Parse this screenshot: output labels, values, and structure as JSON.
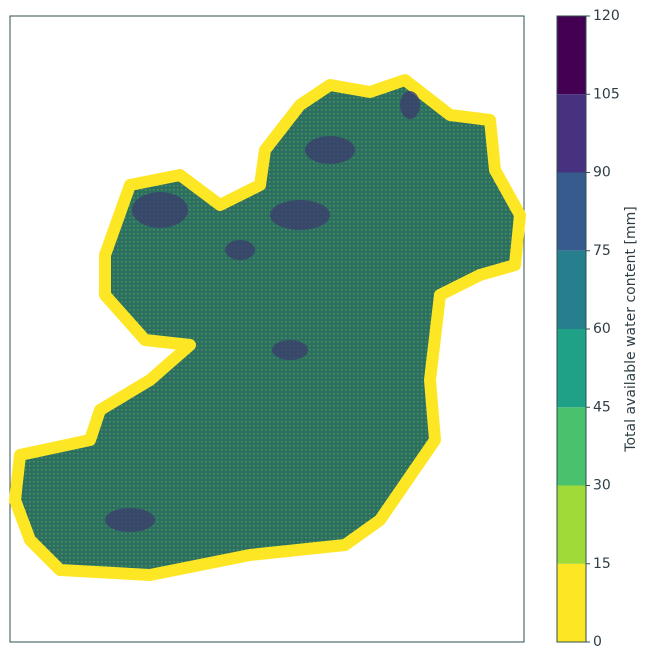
{
  "colorbar": {
    "label": "Total available water content [mm]",
    "ticks": [
      0,
      15,
      30,
      45,
      60,
      75,
      90,
      105,
      120
    ],
    "colors": [
      "#fde725",
      "#a0da39",
      "#4ac16d",
      "#1fa187",
      "#277f8e",
      "#365c8d",
      "#46327e",
      "#440154"
    ]
  }
}
